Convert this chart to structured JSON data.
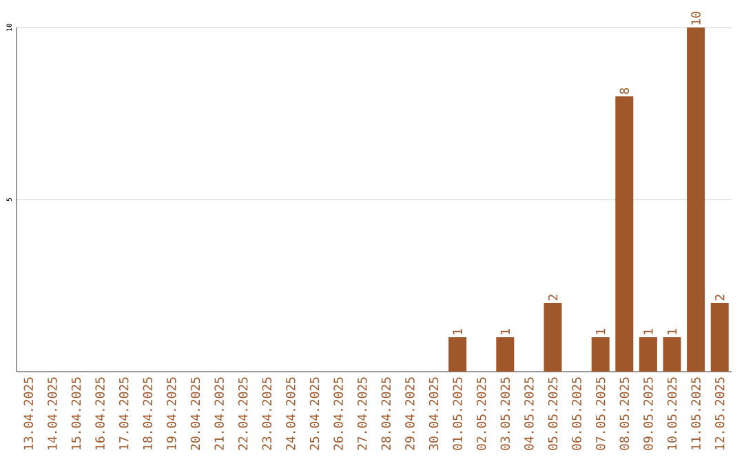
{
  "chart_data": {
    "type": "bar",
    "categories": [
      "13.04.2025",
      "14.04.2025",
      "15.04.2025",
      "16.04.2025",
      "17.04.2025",
      "18.04.2025",
      "19.04.2025",
      "20.04.2025",
      "21.04.2025",
      "22.04.2025",
      "23.04.2025",
      "24.04.2025",
      "25.04.2025",
      "26.04.2025",
      "27.04.2025",
      "28.04.2025",
      "29.04.2025",
      "30.04.2025",
      "01.05.2025",
      "02.05.2025",
      "03.05.2025",
      "04.05.2025",
      "05.05.2025",
      "06.05.2025",
      "07.05.2025",
      "08.05.2025",
      "09.05.2025",
      "10.05.2025",
      "11.05.2025",
      "12.05.2025"
    ],
    "values": [
      0,
      0,
      0,
      0,
      0,
      0,
      0,
      0,
      0,
      0,
      0,
      0,
      0,
      0,
      0,
      0,
      0,
      0,
      1,
      0,
      1,
      0,
      2,
      0,
      1,
      8,
      1,
      1,
      10,
      2
    ],
    "value_labels": [
      null,
      null,
      null,
      null,
      null,
      null,
      null,
      null,
      null,
      null,
      null,
      null,
      null,
      null,
      null,
      null,
      null,
      null,
      "1",
      null,
      "1",
      null,
      "2",
      null,
      "1",
      "8",
      "1",
      "1",
      "10",
      "2"
    ],
    "color": "#a0582a",
    "ylim": [
      0,
      10
    ],
    "yticks": [
      5,
      10
    ],
    "grid": "y"
  }
}
